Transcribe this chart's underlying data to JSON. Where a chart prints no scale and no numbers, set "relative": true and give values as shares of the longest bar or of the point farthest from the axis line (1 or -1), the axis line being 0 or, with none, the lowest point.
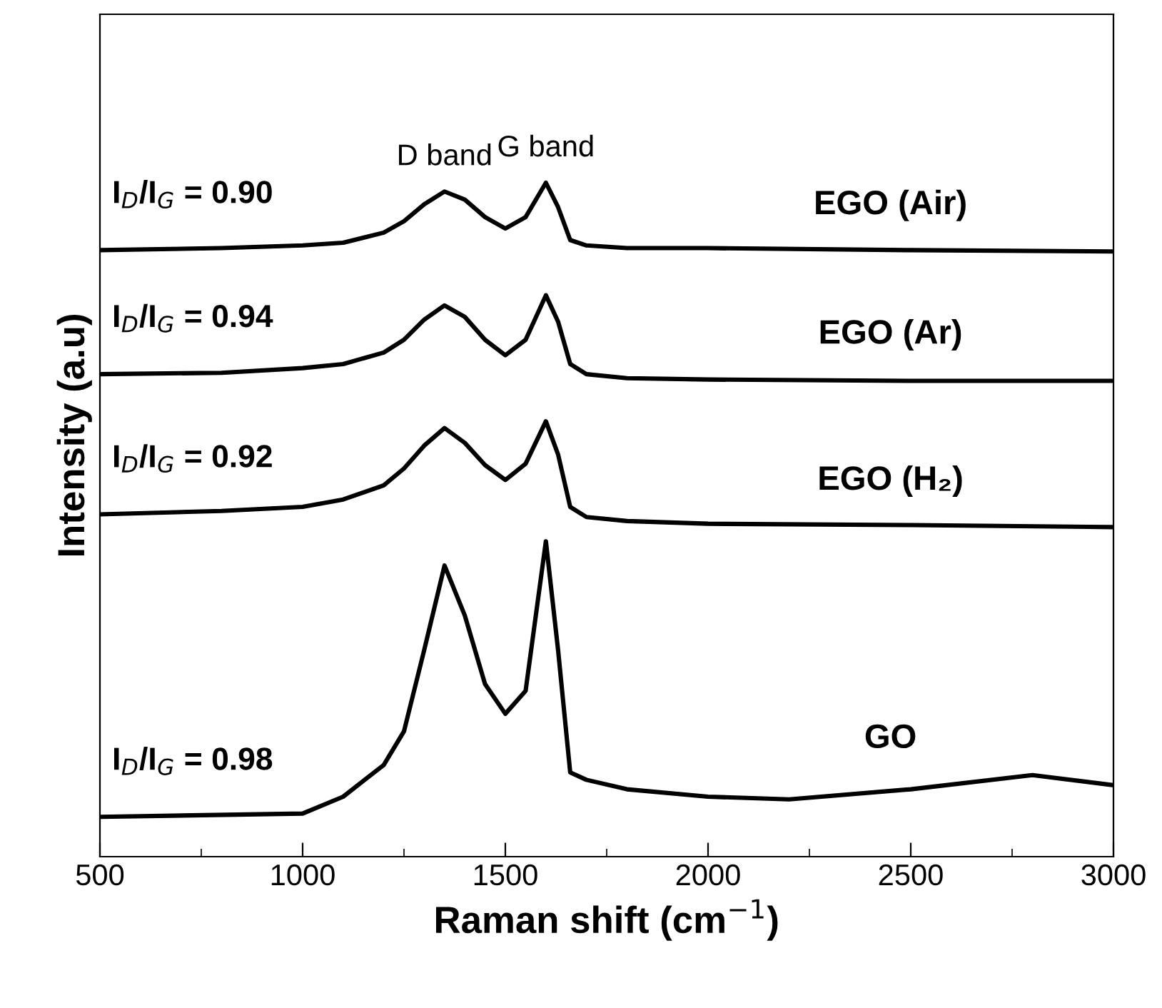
{
  "chart_data": {
    "type": "line",
    "relative": true,
    "xlabel": "Raman shift (cm$^{−1}$)",
    "ylabel": "Intensity (a.u)",
    "xlim": [
      500,
      3000
    ],
    "xticks": [
      500,
      1000,
      1500,
      2000,
      2500,
      3000
    ],
    "tick_labels": "x",
    "legend": false,
    "grid": false,
    "marker": "none",
    "line_style": "solid",
    "annotations": [
      {
        "text": "D band",
        "x": 1350,
        "y": 0.987
      },
      {
        "text": "G band",
        "x": 1600,
        "y": 1.0
      },
      "I$_{D}$/I$_{G}$ = 0.90",
      "I$_{D}$/I$_{G}$ = 0.94",
      "I$_{D}$/I$_{G}$ = 0.92",
      "I$_{D}$/I$_{G}$ = 0.98"
    ],
    "series": [
      {
        "name": "EGO (Air)",
        "color": "#000000",
        "x": [
          500,
          800,
          1000,
          1100,
          1200,
          1250,
          1300,
          1350,
          1400,
          1450,
          1500,
          1550,
          1600,
          1630,
          1660,
          1700,
          1800,
          2000,
          2500,
          3000
        ],
        "values": [
          0.9,
          0.903,
          0.907,
          0.911,
          0.926,
          0.943,
          0.968,
          0.987,
          0.975,
          0.949,
          0.932,
          0.949,
          1.0,
          0.964,
          0.915,
          0.907,
          0.903,
          0.903,
          0.9,
          0.898
        ]
      },
      {
        "name": "EGO (Ar)",
        "color": "#000000",
        "x": [
          500,
          800,
          1000,
          1100,
          1200,
          1250,
          1300,
          1350,
          1400,
          1450,
          1500,
          1550,
          1600,
          1630,
          1660,
          1700,
          1800,
          2000,
          2500,
          3000
        ],
        "values": [
          0.716,
          0.718,
          0.725,
          0.731,
          0.748,
          0.767,
          0.797,
          0.818,
          0.801,
          0.767,
          0.744,
          0.767,
          0.833,
          0.794,
          0.731,
          0.716,
          0.71,
          0.708,
          0.706,
          0.706
        ]
      },
      {
        "name": "EGO (H₂)",
        "color": "#000000",
        "x": [
          500,
          800,
          1000,
          1100,
          1200,
          1250,
          1300,
          1350,
          1400,
          1450,
          1500,
          1550,
          1600,
          1630,
          1660,
          1700,
          1800,
          2000,
          2500,
          3000
        ],
        "values": [
          0.508,
          0.513,
          0.519,
          0.53,
          0.551,
          0.576,
          0.61,
          0.636,
          0.614,
          0.581,
          0.559,
          0.583,
          0.646,
          0.597,
          0.519,
          0.504,
          0.498,
          0.494,
          0.492,
          0.489
        ]
      },
      {
        "name": "GO",
        "color": "#000000",
        "x": [
          500,
          1000,
          1100,
          1200,
          1250,
          1300,
          1350,
          1400,
          1450,
          1500,
          1550,
          1600,
          1630,
          1660,
          1700,
          1800,
          2000,
          2200,
          2500,
          2800,
          3000
        ],
        "values": [
          0.059,
          0.064,
          0.089,
          0.136,
          0.186,
          0.307,
          0.432,
          0.358,
          0.256,
          0.212,
          0.246,
          0.468,
          0.307,
          0.125,
          0.114,
          0.1,
          0.089,
          0.085,
          0.1,
          0.121,
          0.106
        ]
      }
    ]
  }
}
